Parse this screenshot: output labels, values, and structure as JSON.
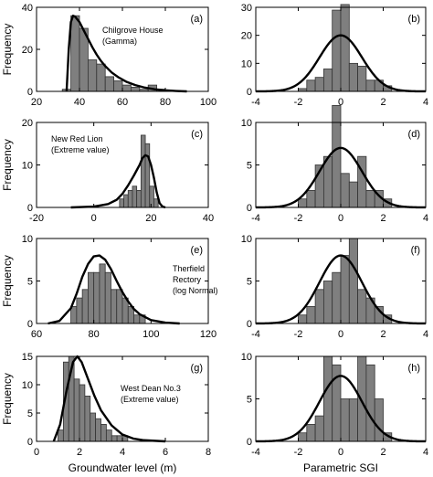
{
  "chart_data": [
    {
      "id": "a",
      "type": "histogram",
      "panel_label": "(a)",
      "annotation": [
        "Chilgrove House",
        "(Gamma)"
      ],
      "xlim": [
        20,
        100
      ],
      "ylim": [
        0,
        40
      ],
      "xticks": [
        20,
        40,
        60,
        80,
        100
      ],
      "yticks": [
        0,
        20,
        40
      ],
      "ylabel": "Frequency",
      "xlabel": "",
      "bin_width": 4,
      "bins_left": [
        32,
        36,
        40,
        44,
        48,
        52,
        56,
        60,
        64,
        68,
        72,
        76
      ],
      "counts": [
        1,
        36,
        30,
        15,
        13,
        7,
        5,
        3,
        2,
        1,
        3,
        1
      ],
      "curve": [
        [
          34,
          0
        ],
        [
          35,
          20
        ],
        [
          36,
          33
        ],
        [
          37,
          36
        ],
        [
          38,
          35.5
        ],
        [
          40,
          33
        ],
        [
          42,
          29
        ],
        [
          44,
          25
        ],
        [
          46,
          21
        ],
        [
          48,
          17.5
        ],
        [
          50,
          14.5
        ],
        [
          52,
          12
        ],
        [
          55,
          9
        ],
        [
          58,
          6.8
        ],
        [
          62,
          4.5
        ],
        [
          66,
          3
        ],
        [
          70,
          1.9
        ],
        [
          75,
          1
        ],
        [
          80,
          0.5
        ],
        [
          85,
          0.2
        ],
        [
          90,
          0
        ]
      ]
    },
    {
      "id": "b",
      "type": "histogram",
      "panel_label": "(b)",
      "annotation": [],
      "xlim": [
        -4,
        4
      ],
      "ylim": [
        0,
        30
      ],
      "xticks": [
        -4,
        -2,
        0,
        2,
        4
      ],
      "yticks": [
        0,
        10,
        20,
        30
      ],
      "ylabel": "",
      "xlabel": "",
      "bin_width": 0.4,
      "bins_left": [
        -2.0,
        -1.6,
        -1.2,
        -0.8,
        -0.4,
        0.0,
        0.4,
        0.8,
        1.2,
        1.6,
        2.0
      ],
      "counts": [
        1,
        4,
        5,
        8,
        29,
        31,
        10,
        9,
        4,
        4,
        2
      ],
      "curve": "normal",
      "curve_peak": 20
    },
    {
      "id": "c",
      "type": "histogram",
      "panel_label": "(c)",
      "annotation": [
        "New Red Lion",
        "(Extreme value)"
      ],
      "xlim": [
        -20,
        40
      ],
      "ylim": [
        0,
        20
      ],
      "xticks": [
        -20,
        0,
        20,
        40
      ],
      "yticks": [
        0,
        10,
        20
      ],
      "ylabel": "Frequency",
      "xlabel": "",
      "bin_width": 1.5,
      "bins_left": [
        9.0,
        10.5,
        12.0,
        13.5,
        15.0,
        16.5,
        18.0,
        19.5,
        21.0
      ],
      "counts": [
        2,
        3,
        4,
        5,
        4,
        17,
        15,
        5,
        2
      ],
      "curve": [
        [
          -8,
          0
        ],
        [
          0,
          0.2
        ],
        [
          5,
          0.8
        ],
        [
          8,
          1.8
        ],
        [
          10,
          3.2
        ],
        [
          12,
          5.2
        ],
        [
          14,
          7.5
        ],
        [
          16,
          10
        ],
        [
          17,
          11.6
        ],
        [
          18,
          12.3
        ],
        [
          19,
          12
        ],
        [
          20,
          10
        ],
        [
          21,
          7
        ],
        [
          22,
          3.5
        ],
        [
          23,
          1
        ],
        [
          24,
          0.2
        ],
        [
          25,
          0
        ]
      ]
    },
    {
      "id": "d",
      "type": "histogram",
      "panel_label": "(d)",
      "annotation": [],
      "xlim": [
        -4,
        4
      ],
      "ylim": [
        0,
        10
      ],
      "xticks": [
        -4,
        -2,
        0,
        2,
        4
      ],
      "yticks": [
        0,
        5,
        10
      ],
      "ylabel": "",
      "xlabel": "",
      "bin_width": 0.4,
      "bins_left": [
        -2.0,
        -1.6,
        -1.2,
        -0.8,
        -0.4,
        0.0,
        0.4,
        0.8,
        1.2,
        1.6,
        2.0
      ],
      "counts": [
        1,
        2,
        5,
        6,
        12,
        4,
        3,
        6,
        2,
        2,
        1
      ],
      "curve": "normal",
      "curve_peak": 7
    },
    {
      "id": "e",
      "type": "histogram",
      "panel_label": "(e)",
      "annotation": [
        "Therfield",
        "Rectory",
        "(log Normal)"
      ],
      "xlim": [
        60,
        120
      ],
      "ylim": [
        0,
        10
      ],
      "xticks": [
        60,
        80,
        100,
        120
      ],
      "yticks": [
        0,
        5,
        10
      ],
      "ylabel": "Frequency",
      "xlabel": "",
      "bin_width": 2,
      "bins_left": [
        72,
        74,
        76,
        78,
        80,
        82,
        84,
        86,
        88,
        90,
        92,
        94,
        96
      ],
      "counts": [
        2,
        3,
        4,
        6,
        6,
        7,
        6,
        4,
        4,
        3,
        2,
        1,
        1
      ],
      "curve": [
        [
          64,
          0
        ],
        [
          68,
          0.3
        ],
        [
          72,
          1.8
        ],
        [
          74,
          3.5
        ],
        [
          76,
          5.5
        ],
        [
          78,
          7
        ],
        [
          80,
          7.9
        ],
        [
          82,
          8
        ],
        [
          84,
          7.5
        ],
        [
          86,
          6.4
        ],
        [
          88,
          5
        ],
        [
          90,
          3.7
        ],
        [
          92,
          2.6
        ],
        [
          94,
          1.7
        ],
        [
          96,
          1.1
        ],
        [
          100,
          0.4
        ],
        [
          105,
          0.1
        ],
        [
          110,
          0
        ]
      ]
    },
    {
      "id": "f",
      "type": "histogram",
      "panel_label": "(f)",
      "annotation": [],
      "xlim": [
        -4,
        4
      ],
      "ylim": [
        0,
        10
      ],
      "xticks": [
        -4,
        -2,
        0,
        2,
        4
      ],
      "yticks": [
        0,
        5,
        10
      ],
      "ylabel": "",
      "xlabel": "",
      "bin_width": 0.4,
      "bins_left": [
        -2.0,
        -1.6,
        -1.2,
        -0.8,
        -0.4,
        0.0,
        0.4,
        0.8,
        1.2,
        1.6,
        2.0
      ],
      "counts": [
        1,
        2,
        4,
        5,
        6,
        8,
        10,
        4,
        3,
        2,
        1
      ],
      "curve": "normal",
      "curve_peak": 8
    },
    {
      "id": "g",
      "type": "histogram",
      "panel_label": "(g)",
      "annotation": [
        "West Dean No.3",
        "(Extreme value)"
      ],
      "xlim": [
        0,
        8
      ],
      "ylim": [
        0,
        15
      ],
      "xticks": [
        0,
        2,
        4,
        6,
        8
      ],
      "yticks": [
        0,
        5,
        10,
        15
      ],
      "ylabel": "Frequency",
      "xlabel": "Groundwater level (m)",
      "bin_width": 0.25,
      "bins_left": [
        1.0,
        1.25,
        1.5,
        1.75,
        2.0,
        2.25,
        2.5,
        2.75,
        3.0,
        3.25,
        3.5,
        3.75,
        4.0
      ],
      "counts": [
        2,
        14,
        15,
        11,
        10,
        8,
        5,
        4,
        3,
        2,
        1,
        1,
        1
      ],
      "curve": [
        [
          0.8,
          0
        ],
        [
          1.1,
          3
        ],
        [
          1.4,
          9
        ],
        [
          1.7,
          14
        ],
        [
          1.9,
          15
        ],
        [
          2.1,
          14
        ],
        [
          2.4,
          11
        ],
        [
          2.7,
          8
        ],
        [
          3.0,
          5.5
        ],
        [
          3.5,
          2.8
        ],
        [
          4.0,
          1.2
        ],
        [
          4.5,
          0.5
        ],
        [
          5.0,
          0.2
        ],
        [
          6.0,
          0
        ]
      ]
    },
    {
      "id": "h",
      "type": "histogram",
      "panel_label": "(h)",
      "annotation": [],
      "xlim": [
        -4,
        4
      ],
      "ylim": [
        0,
        10
      ],
      "xticks": [
        -4,
        -2,
        0,
        2,
        4
      ],
      "yticks": [
        0,
        5,
        10
      ],
      "ylabel": "",
      "xlabel": "Parametric SGI",
      "bin_width": 0.4,
      "bins_left": [
        -2.0,
        -1.6,
        -1.2,
        -0.8,
        -0.4,
        0.0,
        0.4,
        0.8,
        1.2,
        1.6,
        2.0
      ],
      "counts": [
        1,
        2,
        3,
        10,
        9,
        5,
        5,
        10,
        9,
        5,
        1
      ],
      "curve": "normal",
      "curve_peak": 7.7
    }
  ]
}
